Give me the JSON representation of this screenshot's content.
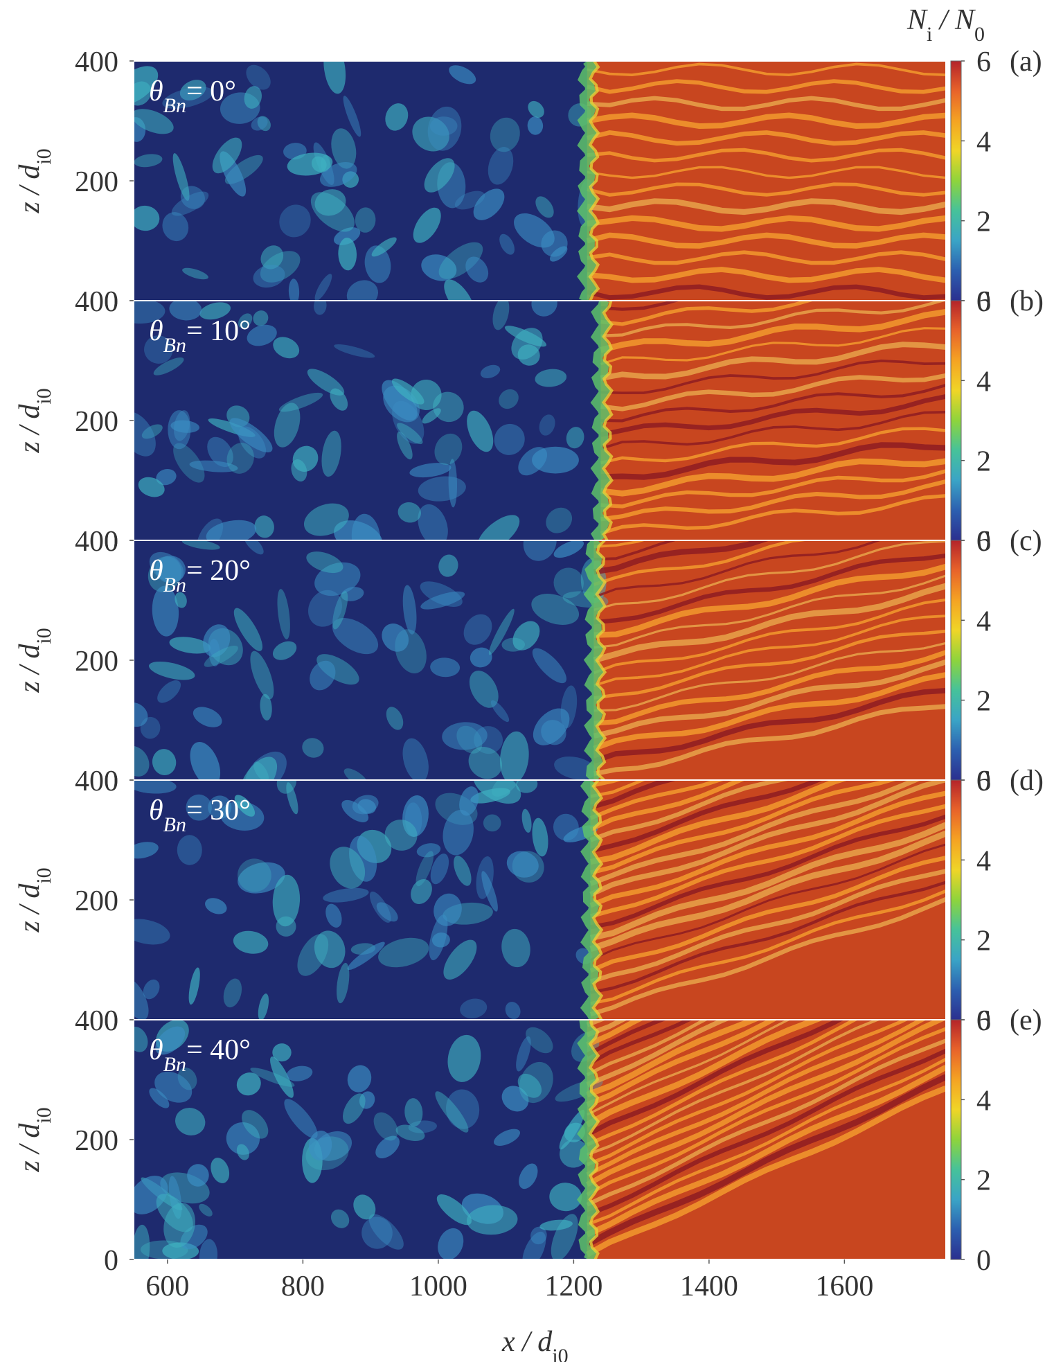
{
  "chart_data": {
    "type": "heatmap",
    "title": "",
    "xlabel": "x / d",
    "xlabel_sub": "i0",
    "ylabel": "z / d",
    "ylabel_sub": "i0",
    "colorbar_label": "N",
    "colorbar_label_sub": "i",
    "colorbar_label_rest": " / N",
    "colorbar_label_sub2": "0",
    "xlim": [
      550,
      1750
    ],
    "ylim": [
      0,
      400
    ],
    "x_ticks": [
      "600",
      "800",
      "1000",
      "1200",
      "1400",
      "1600"
    ],
    "x_tick_values": [
      600,
      800,
      1000,
      1200,
      1400,
      1600
    ],
    "y_ticks": [
      "0",
      "200",
      "400"
    ],
    "y_tick_values": [
      0,
      200,
      400
    ],
    "clim": [
      0,
      6
    ],
    "colorbar_ticks": [
      "0",
      "2",
      "4",
      "6"
    ],
    "colorbar_tick_values": [
      0,
      2,
      4,
      6
    ],
    "colormap": [
      "#2b2f8f",
      "#2c5fb0",
      "#3aa4c6",
      "#46c29a",
      "#8ed43c",
      "#f0d527",
      "#f5a323",
      "#e8632a",
      "#b4242a"
    ],
    "upstream_color": "#1e2a6e",
    "downstream_color": "#c8461f",
    "panels": [
      {
        "label": "(a)",
        "theta_symbol": "θ",
        "theta_sub": "Bn",
        "theta_value": "= 0°",
        "theta_deg": 0,
        "shock_x": 1220
      },
      {
        "label": "(b)",
        "theta_symbol": "θ",
        "theta_sub": "Bn",
        "theta_value": "= 10°",
        "theta_deg": 10,
        "shock_x": 1240
      },
      {
        "label": "(c)",
        "theta_symbol": "θ",
        "theta_sub": "Bn",
        "theta_value": "= 20°",
        "theta_deg": 20,
        "shock_x": 1230
      },
      {
        "label": "(d)",
        "theta_symbol": "θ",
        "theta_sub": "Bn",
        "theta_value": "= 30°",
        "theta_deg": 30,
        "shock_x": 1225
      },
      {
        "label": "(e)",
        "theta_symbol": "θ",
        "theta_sub": "Bn",
        "theta_value": "= 40°",
        "theta_deg": 40,
        "shock_x": 1220
      }
    ]
  }
}
